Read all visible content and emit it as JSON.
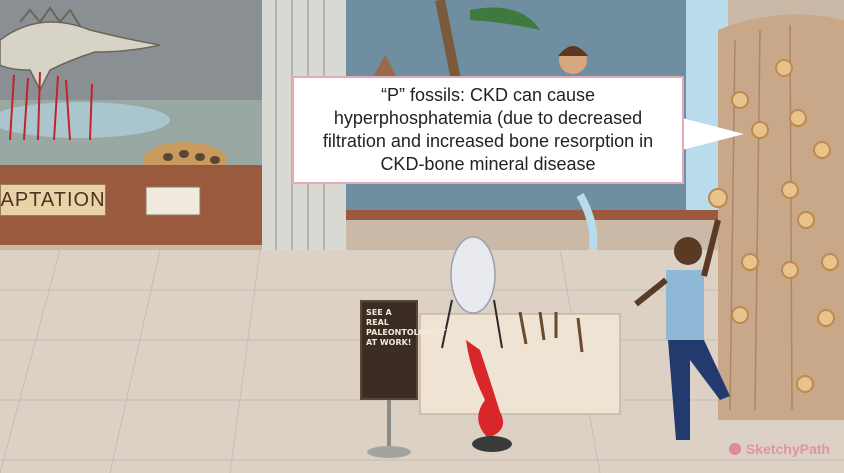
{
  "callout": {
    "text": "“P” fossils: CKD can cause hyperphosphatemia (due to decreased filtration and increased bone resorption in CKD-bone mineral disease"
  },
  "exhibit_sign": {
    "text": "APTATION"
  },
  "easel_sign": {
    "text": "SEE A REAL PALEONTOLOGIST AT WORK!"
  },
  "watermark": {
    "text": "SketchyPath"
  },
  "icons": [
    "dinosaur-icon",
    "fossil-p-icon",
    "hammer-icon",
    "jar-icon",
    "drain-icon"
  ]
}
